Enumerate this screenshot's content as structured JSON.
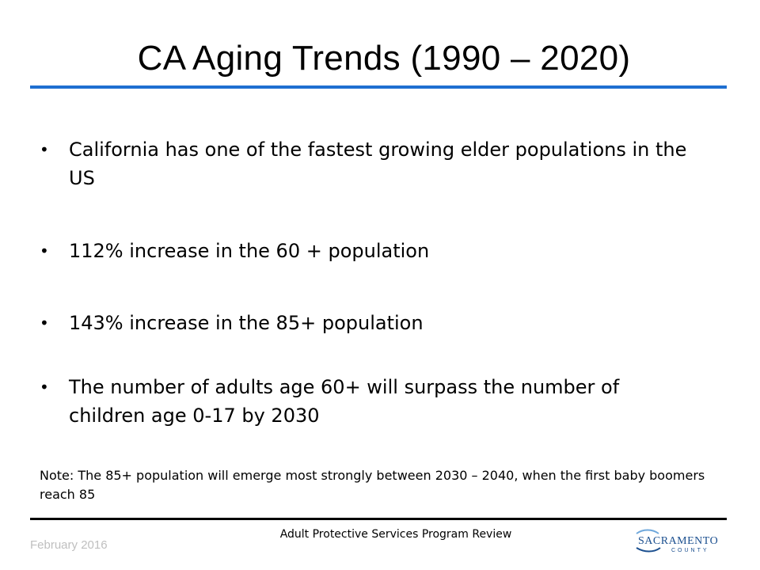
{
  "title": "CA Aging Trends (1990 – 2020)",
  "bullets": [
    "California has one of the fastest growing elder populations in the US",
    "112% increase in the 60 +  population",
    "143% increase in the 85+ population",
    "The number of adults age 60+ will surpass the number of children age 0-17 by 2030"
  ],
  "note": "Note:  The 85+ population will emerge most strongly between 2030 – 2040, when the first baby boomers reach 85",
  "footer": {
    "date": "February 2016",
    "center": "Adult Protective Services Program Review",
    "logo_text": "SACRAMENTO",
    "logo_subtext": "COUNTY"
  },
  "colors": {
    "accent": "#1f6fd1",
    "logo_blue": "#1b4f8f",
    "logo_light": "#6fa8dc"
  }
}
